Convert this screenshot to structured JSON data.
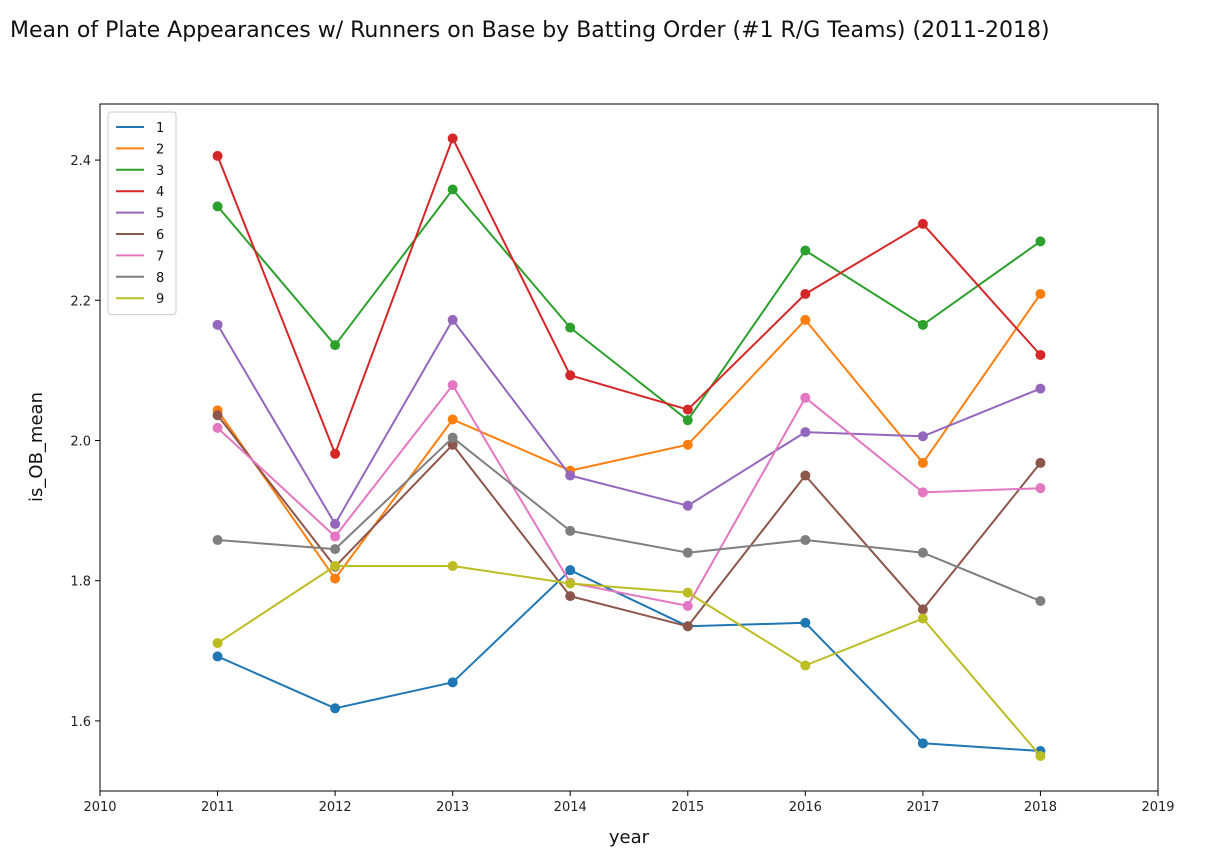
{
  "chart_data": {
    "type": "line",
    "title": "Mean of Plate Appearances w/ Runners on Base by Batting Order (#1 R/G Teams) (2011-2018)",
    "xlabel": "year",
    "ylabel": "is_OB_mean",
    "xlim": [
      2010,
      2019
    ],
    "ylim": [
      1.5,
      2.48
    ],
    "x_ticks": [
      "2010",
      "2011",
      "2012",
      "2013",
      "2014",
      "2015",
      "2016",
      "2017",
      "2018",
      "2019"
    ],
    "y_ticks": [
      "1.6",
      "1.8",
      "2.0",
      "2.2",
      "2.4"
    ],
    "grid": false,
    "legend_position": "top-left",
    "markers": true,
    "x": [
      2011,
      2012,
      2013,
      2014,
      2015,
      2016,
      2017,
      2018
    ],
    "series": [
      {
        "name": "1",
        "color": "#1f77b4",
        "values": [
          1.692,
          1.618,
          1.655,
          1.815,
          1.735,
          1.74,
          1.568,
          1.557
        ]
      },
      {
        "name": "2",
        "color": "#ff7f0e",
        "values": [
          2.043,
          1.803,
          2.03,
          1.957,
          1.994,
          2.172,
          1.968,
          2.209
        ]
      },
      {
        "name": "3",
        "color": "#2ca02c",
        "values": [
          2.334,
          2.136,
          2.358,
          2.161,
          2.029,
          2.271,
          2.165,
          2.284
        ]
      },
      {
        "name": "4",
        "color": "#d62728",
        "values": [
          2.406,
          1.981,
          2.431,
          2.093,
          2.044,
          2.209,
          2.309,
          2.122
        ]
      },
      {
        "name": "5",
        "color": "#9467bd",
        "values": [
          2.165,
          1.881,
          2.172,
          1.95,
          1.907,
          2.012,
          2.006,
          2.074
        ]
      },
      {
        "name": "6",
        "color": "#8c564b",
        "values": [
          2.036,
          1.82,
          1.994,
          1.778,
          1.735,
          1.95,
          1.759,
          1.968
        ]
      },
      {
        "name": "7",
        "color": "#e377c2",
        "values": [
          2.018,
          1.863,
          2.079,
          1.797,
          1.764,
          2.061,
          1.926,
          1.932
        ]
      },
      {
        "name": "8",
        "color": "#7f7f7f",
        "values": [
          1.858,
          1.845,
          2.004,
          1.871,
          1.84,
          1.858,
          1.84,
          1.771
        ]
      },
      {
        "name": "9",
        "color": "#bcbd22",
        "values": [
          1.711,
          1.821,
          1.821,
          1.796,
          1.783,
          1.679,
          1.746,
          1.55
        ]
      }
    ]
  }
}
